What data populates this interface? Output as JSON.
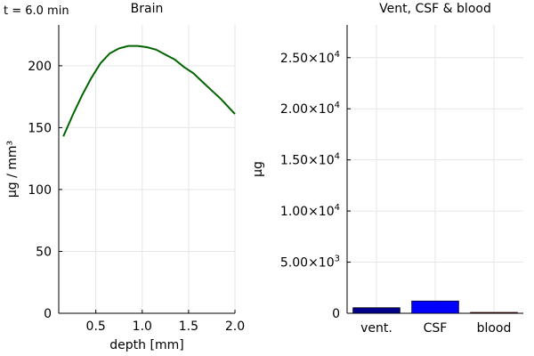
{
  "time_label": "t = 6.0 min",
  "colors": {
    "brain_line": "#006400",
    "vent_bar": "#00008b",
    "csf_bar": "#0000ff",
    "blood_bar": "#8b0000"
  },
  "chart_data": [
    {
      "type": "line",
      "title": "Brain",
      "xlabel": "depth [mm]",
      "ylabel": "μg / mm³",
      "xlim": [
        0.1,
        2.0
      ],
      "ylim": [
        0,
        233
      ],
      "xticks": [
        0.5,
        1.0,
        1.5,
        2.0
      ],
      "xtick_labels": [
        "0.5",
        "1.0",
        "1.5",
        "2.0"
      ],
      "yticks": [
        0,
        50,
        100,
        150,
        200
      ],
      "ytick_labels": [
        "0",
        "50",
        "100",
        "150",
        "200"
      ],
      "grid": true,
      "series": [
        {
          "x": [
            0.15,
            0.25,
            0.35,
            0.45,
            0.55,
            0.65,
            0.75,
            0.85,
            0.95,
            1.05,
            1.15,
            1.25,
            1.35,
            1.45,
            1.55,
            1.65,
            1.75,
            1.85,
            1.95,
            2.0
          ],
          "y": [
            143,
            160,
            176,
            190,
            202,
            210,
            214,
            216,
            216,
            215,
            213,
            209,
            205,
            199,
            194,
            187,
            180,
            173,
            165,
            161
          ]
        }
      ]
    },
    {
      "type": "bar",
      "title": "Vent, CSF & blood",
      "xlabel": "",
      "ylabel": "μg",
      "categories": [
        "vent.",
        "CSF",
        "blood"
      ],
      "values": [
        550,
        1200,
        30
      ],
      "ylim": [
        0,
        28200
      ],
      "yticks": [
        5000,
        10000,
        15000,
        20000,
        25000
      ],
      "ytick_labels": [
        {
          "mantissa": "5.00×10",
          "exp": "3"
        },
        {
          "mantissa": "1.00×10",
          "exp": "4"
        },
        {
          "mantissa": "1.50×10",
          "exp": "4"
        },
        {
          "mantissa": "2.00×10",
          "exp": "4"
        },
        {
          "mantissa": "2.50×10",
          "exp": "4"
        }
      ],
      "zero_label": "0",
      "grid": true
    }
  ]
}
